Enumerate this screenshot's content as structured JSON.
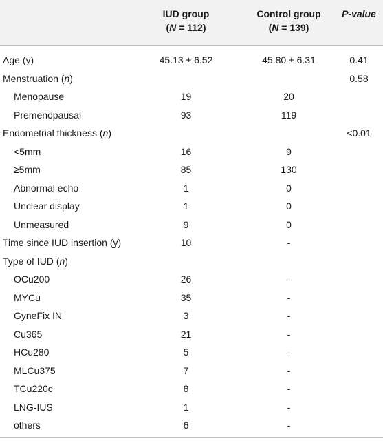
{
  "header": {
    "iud_title": "IUD group",
    "iud_n": "(N = 112)",
    "control_title": "Control group",
    "control_n": "(N = 139)",
    "p_title": "P-value"
  },
  "rows": [
    {
      "label": "Age (y)",
      "iud": "45.13 ± 6.52",
      "control": "45.80 ± 6.31",
      "p": "0.41"
    },
    {
      "label": "Menstruation (n)",
      "iud": "",
      "control": "",
      "p": "0.58"
    },
    {
      "label": "Menopause",
      "iud": "19",
      "control": "20",
      "p": ""
    },
    {
      "label": "Premenopausal",
      "iud": "93",
      "control": "119",
      "p": ""
    },
    {
      "label": "Endometrial thickness (n)",
      "iud": "",
      "control": "",
      "p": "<0.01"
    },
    {
      "label": "<5mm",
      "iud": "16",
      "control": "9",
      "p": ""
    },
    {
      "label": "≥5mm",
      "iud": "85",
      "control": "130",
      "p": ""
    },
    {
      "label": "Abnormal echo",
      "iud": "1",
      "control": "0",
      "p": ""
    },
    {
      "label": "Unclear display",
      "iud": "1",
      "control": "0",
      "p": ""
    },
    {
      "label": "Unmeasured",
      "iud": "9",
      "control": "0",
      "p": ""
    },
    {
      "label": "Time since IUD insertion (y)",
      "iud": "10",
      "control": "-",
      "p": ""
    },
    {
      "label": "Type of IUD (n)",
      "iud": "",
      "control": "",
      "p": ""
    },
    {
      "label": "OCu200",
      "iud": "26",
      "control": "-",
      "p": ""
    },
    {
      "label": "MYCu",
      "iud": "35",
      "control": "-",
      "p": ""
    },
    {
      "label": "GyneFix IN",
      "iud": "3",
      "control": "-",
      "p": ""
    },
    {
      "label": "Cu365",
      "iud": "21",
      "control": "-",
      "p": ""
    },
    {
      "label": "HCu280",
      "iud": "5",
      "control": "-",
      "p": ""
    },
    {
      "label": "MLCu375",
      "iud": "7",
      "control": "-",
      "p": ""
    },
    {
      "label": "TCu220c",
      "iud": "8",
      "control": "-",
      "p": ""
    },
    {
      "label": "LNG-IUS",
      "iud": "1",
      "control": "-",
      "p": ""
    },
    {
      "label": "others",
      "iud": "6",
      "control": "-",
      "p": ""
    }
  ]
}
